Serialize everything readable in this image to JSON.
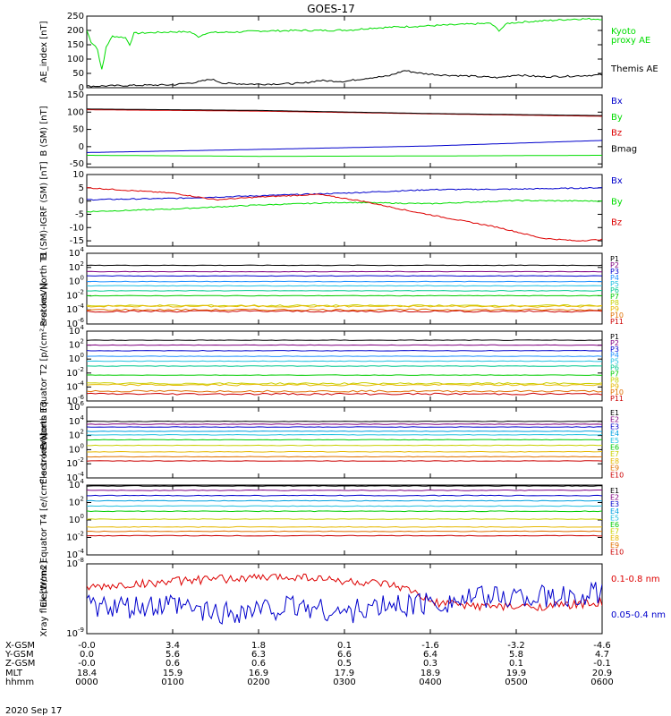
{
  "title": "GOES-17",
  "date_label": "2020 Sep 17",
  "colors": {
    "P1": "#000000",
    "P2": "#800080",
    "P3": "#0000cc",
    "P4": "#1e90ff",
    "P5": "#20c0e0",
    "P6": "#00c890",
    "P7": "#00cc00",
    "P8": "#c8d000",
    "P9": "#e6b800",
    "P10": "#e07000",
    "P11": "#cc0000",
    "E1": "#000000",
    "E2": "#800080",
    "E3": "#0000cc",
    "E4": "#00a0e0",
    "E5": "#20c0e0",
    "E6": "#00cc00",
    "E7": "#c8d000",
    "E8": "#e6b800",
    "E9": "#e07000",
    "E10": "#cc0000",
    "green": "#00dd00",
    "red": "#dd0000",
    "blue": "#0000cc",
    "black": "#000000"
  },
  "footer": {
    "row_labels": [
      "X-GSM",
      "Y-GSM",
      "Z-GSM",
      "MLT",
      "hhmm"
    ],
    "columns": [
      [
        "-0.0",
        "0.0",
        "-0.0",
        "18.4",
        "0000"
      ],
      [
        "3.4",
        "5.6",
        "0.6",
        "15.9",
        "0100"
      ],
      [
        "1.8",
        "6.3",
        "0.6",
        "16.9",
        "0200"
      ],
      [
        "0.1",
        "6.6",
        "0.5",
        "17.9",
        "0300"
      ],
      [
        "-1.6",
        "6.4",
        "0.3",
        "18.9",
        "0400"
      ],
      [
        "-3.2",
        "5.8",
        "0.1",
        "19.9",
        "0500"
      ],
      [
        "-4.6",
        "4.7",
        "-0.1",
        "20.9",
        "0600"
      ]
    ]
  },
  "chart_data": [
    {
      "type": "line",
      "id": "ae",
      "ylabel": "AE_index [nT]",
      "ylim": [
        0,
        250
      ],
      "yticks": [
        "0",
        "50",
        "100",
        "150",
        "200",
        "250"
      ],
      "x_range_hours": [
        0,
        6
      ],
      "series": [
        {
          "name": "Kyoto proxy AE",
          "color_key": "green",
          "points": [
            [
              0,
              200
            ],
            [
              0.05,
              160
            ],
            [
              0.12,
              140
            ],
            [
              0.18,
              55
            ],
            [
              0.22,
              140
            ],
            [
              0.3,
              180
            ],
            [
              0.45,
              175
            ],
            [
              0.5,
              150
            ],
            [
              0.55,
              190
            ],
            [
              1.0,
              195
            ],
            [
              1.2,
              195
            ],
            [
              1.3,
              178
            ],
            [
              1.4,
              192
            ],
            [
              1.8,
              195
            ],
            [
              2.0,
              198
            ],
            [
              2.5,
              200
            ],
            [
              2.8,
              200
            ],
            [
              3.1,
              202
            ],
            [
              3.3,
              208
            ],
            [
              3.6,
              212
            ],
            [
              3.9,
              215
            ],
            [
              4.3,
              220
            ],
            [
              4.7,
              225
            ],
            [
              4.8,
              200
            ],
            [
              4.9,
              225
            ],
            [
              5.1,
              230
            ],
            [
              5.4,
              235
            ],
            [
              5.7,
              240
            ],
            [
              6.0,
              240
            ]
          ]
        },
        {
          "name": "Themis AE",
          "color_key": "black",
          "points": [
            [
              0,
              5
            ],
            [
              0.5,
              8
            ],
            [
              1.0,
              10
            ],
            [
              1.3,
              20
            ],
            [
              1.45,
              30
            ],
            [
              1.6,
              15
            ],
            [
              2.0,
              12
            ],
            [
              2.5,
              15
            ],
            [
              2.7,
              25
            ],
            [
              3.0,
              22
            ],
            [
              3.3,
              35
            ],
            [
              3.5,
              40
            ],
            [
              3.7,
              60
            ],
            [
              3.9,
              50
            ],
            [
              4.1,
              45
            ],
            [
              4.5,
              40
            ],
            [
              4.8,
              35
            ],
            [
              5.0,
              45
            ],
            [
              5.3,
              38
            ],
            [
              5.6,
              40
            ],
            [
              6.0,
              45
            ]
          ]
        }
      ]
    },
    {
      "type": "line",
      "id": "b_sm",
      "ylabel": "B (SM) [nT]",
      "ylim": [
        -60,
        150
      ],
      "yticks": [
        "-50",
        "0",
        "50",
        "100",
        "150"
      ],
      "series": [
        {
          "name": "Bx",
          "color_key": "blue",
          "points": [
            [
              0,
              -17
            ],
            [
              2,
              -8
            ],
            [
              4,
              2
            ],
            [
              6,
              18
            ]
          ]
        },
        {
          "name": "By",
          "color_key": "green",
          "points": [
            [
              0,
              -25
            ],
            [
              2,
              -28
            ],
            [
              4,
              -27
            ],
            [
              6,
              -25
            ]
          ]
        },
        {
          "name": "Bz",
          "color_key": "red",
          "points": [
            [
              0,
              107
            ],
            [
              2,
              103
            ],
            [
              4,
              95
            ],
            [
              6,
              88
            ]
          ]
        },
        {
          "name": "Bmag",
          "color_key": "black",
          "points": [
            [
              0,
              109
            ],
            [
              2,
              105
            ],
            [
              4,
              96
            ],
            [
              6,
              90
            ]
          ]
        }
      ]
    },
    {
      "type": "line",
      "id": "b_igrf",
      "ylabel": "B (SM)-IGRF (SM) [nT]",
      "ylim": [
        -17,
        10
      ],
      "yticks": [
        "-15",
        "-10",
        "-5",
        "0",
        "5",
        "10"
      ],
      "series": [
        {
          "name": "Bx",
          "color_key": "blue",
          "points": [
            [
              0,
              0.5
            ],
            [
              1,
              1
            ],
            [
              2,
              2
            ],
            [
              3,
              3
            ],
            [
              4,
              4.3
            ],
            [
              5,
              4.5
            ],
            [
              6,
              5
            ]
          ]
        },
        {
          "name": "By",
          "color_key": "green",
          "points": [
            [
              0,
              -4
            ],
            [
              1,
              -3
            ],
            [
              2,
              -1.5
            ],
            [
              3,
              -0.5
            ],
            [
              4,
              -1
            ],
            [
              5,
              0.2
            ],
            [
              6,
              0
            ]
          ]
        },
        {
          "name": "Bz",
          "color_key": "red",
          "points": [
            [
              0,
              5
            ],
            [
              1,
              3
            ],
            [
              1.5,
              0.5
            ],
            [
              2,
              1.5
            ],
            [
              2.7,
              2.5
            ],
            [
              3.2,
              0
            ],
            [
              3.8,
              -4
            ],
            [
              4.3,
              -7
            ],
            [
              4.8,
              -10
            ],
            [
              5.3,
              -14
            ],
            [
              5.7,
              -15
            ],
            [
              6,
              -14.5
            ]
          ]
        }
      ]
    },
    {
      "type": "line",
      "id": "protons_t1",
      "ylabel": "Protons North T1",
      "ylog": true,
      "ylim_exp": [
        -6,
        4
      ],
      "yticks": [
        "10^-6",
        "10^-4",
        "10^-2",
        "10^0",
        "10^2",
        "10^4"
      ],
      "series": [
        {
          "name": "P1",
          "color_key": "P1",
          "log_level": 2.3
        },
        {
          "name": "P2",
          "color_key": "P2",
          "log_level": 1.4
        },
        {
          "name": "P3",
          "color_key": "P3",
          "log_level": 0.8
        },
        {
          "name": "P4",
          "color_key": "P4",
          "log_level": 0.0
        },
        {
          "name": "P5",
          "color_key": "P5",
          "log_level": -0.6
        },
        {
          "name": "P6",
          "color_key": "P6",
          "log_level": -1.3
        },
        {
          "name": "P7",
          "color_key": "P7",
          "log_level": -2.0
        },
        {
          "name": "P8",
          "color_key": "P8",
          "log_level": -3.4
        },
        {
          "name": "P9",
          "color_key": "P9",
          "log_level": -3.5
        },
        {
          "name": "P10",
          "color_key": "P10",
          "log_level": -4.0
        },
        {
          "name": "P11",
          "color_key": "P11",
          "log_level": -4.2
        }
      ]
    },
    {
      "type": "line",
      "id": "protons_t2",
      "ylabel": "Protons Equator T2 [p/(cm²-s-sr-keV)]",
      "ylog": true,
      "ylim_exp": [
        -6,
        4
      ],
      "yticks": [
        "10^-6",
        "10^-4",
        "10^-2",
        "10^0",
        "10^2",
        "10^4"
      ],
      "series": [
        {
          "name": "P1",
          "color_key": "P1",
          "log_level": 2.7
        },
        {
          "name": "P2",
          "color_key": "P2",
          "log_level": 2.0
        },
        {
          "name": "P3",
          "color_key": "P3",
          "log_level": 1.2
        },
        {
          "name": "P4",
          "color_key": "P4",
          "log_level": 0.4
        },
        {
          "name": "P5",
          "color_key": "P5",
          "log_level": -0.3
        },
        {
          "name": "P6",
          "color_key": "P6",
          "log_level": -1.0
        },
        {
          "name": "P7",
          "color_key": "P7",
          "log_level": -2.3
        },
        {
          "name": "P8",
          "color_key": "P8",
          "log_level": -3.5
        },
        {
          "name": "P9",
          "color_key": "P9",
          "log_level": -3.7
        },
        {
          "name": "P10",
          "color_key": "P10",
          "log_level": -4.6
        },
        {
          "name": "P11",
          "color_key": "P11",
          "log_level": -5.0
        }
      ]
    },
    {
      "type": "line",
      "id": "electrons_t3",
      "ylabel": "Electrons North T3",
      "ylog": true,
      "ylim_exp": [
        -4,
        6
      ],
      "yticks": [
        "10^-4",
        "10^-2",
        "10^0",
        "10^2",
        "10^4",
        "10^6"
      ],
      "series": [
        {
          "name": "E1",
          "color_key": "E1",
          "log_level": 4.0
        },
        {
          "name": "E2",
          "color_key": "E2",
          "log_level": 3.6
        },
        {
          "name": "E3",
          "color_key": "E3",
          "log_level": 3.2
        },
        {
          "name": "E4",
          "color_key": "E4",
          "log_level": 2.6
        },
        {
          "name": "E5",
          "color_key": "E5",
          "log_level": 2.1
        },
        {
          "name": "E6",
          "color_key": "E6",
          "log_level": 1.4
        },
        {
          "name": "E7",
          "color_key": "E7",
          "log_level": 0.6
        },
        {
          "name": "E8",
          "color_key": "E8",
          "log_level": -0.3
        },
        {
          "name": "E9",
          "color_key": "E9",
          "log_level": -1.0
        },
        {
          "name": "E10",
          "color_key": "E10",
          "log_level": -1.6
        }
      ]
    },
    {
      "type": "line",
      "id": "electrons_t4",
      "ylabel": "Electrons Equator T4 [e/(cm²-s-sr-keV)]",
      "ylog": true,
      "ylim_exp": [
        -4,
        4
      ],
      "yticks": [
        "10^-4",
        "10^-2",
        "10^0",
        "10^2",
        "10^4"
      ],
      "series": [
        {
          "name": "E1",
          "color_key": "E1",
          "log_level": 3.9
        },
        {
          "name": "E2",
          "color_key": "E2",
          "log_level": 3.4
        },
        {
          "name": "E3",
          "color_key": "E3",
          "log_level": 2.8
        },
        {
          "name": "E4",
          "color_key": "E4",
          "log_level": 2.2
        },
        {
          "name": "E5",
          "color_key": "E5",
          "log_level": 1.6
        },
        {
          "name": "E6",
          "color_key": "E6",
          "log_level": 1.0
        },
        {
          "name": "E7",
          "color_key": "E7",
          "log_level": 0.1
        },
        {
          "name": "E8",
          "color_key": "E8",
          "log_level": -0.8
        },
        {
          "name": "E9",
          "color_key": "E9",
          "log_level": -1.3
        },
        {
          "name": "E10",
          "color_key": "E10",
          "log_level": -1.8
        }
      ]
    },
    {
      "type": "line",
      "id": "xray",
      "ylabel": "Xray flux [W/m2]",
      "ylog": true,
      "ylim_exp": [
        -9,
        -8
      ],
      "yticks": [
        "10^-9",
        "10^-8"
      ],
      "series": [
        {
          "name": "0.1-0.8 nm",
          "color_key": "red",
          "points": [
            [
              0,
              -8.35
            ],
            [
              0.5,
              -8.3
            ],
            [
              1,
              -8.25
            ],
            [
              1.5,
              -8.22
            ],
            [
              2,
              -8.2
            ],
            [
              2.5,
              -8.18
            ],
            [
              3,
              -8.25
            ],
            [
              3.5,
              -8.3
            ],
            [
              3.8,
              -8.4
            ],
            [
              4.0,
              -8.55
            ],
            [
              4.5,
              -8.6
            ],
            [
              5,
              -8.62
            ],
            [
              5.5,
              -8.6
            ],
            [
              6,
              -8.55
            ]
          ]
        },
        {
          "name": "0.05-0.4 nm",
          "color_key": "blue",
          "points": [
            [
              0,
              -8.6
            ],
            [
              0.5,
              -8.65
            ],
            [
              1,
              -8.6
            ],
            [
              1.5,
              -8.7
            ],
            [
              2,
              -8.65
            ],
            [
              2.5,
              -8.6
            ],
            [
              3,
              -8.7
            ],
            [
              3.5,
              -8.6
            ],
            [
              4,
              -8.55
            ],
            [
              4.5,
              -8.5
            ],
            [
              5,
              -8.45
            ],
            [
              5.5,
              -8.5
            ],
            [
              6,
              -8.4
            ]
          ]
        }
      ]
    }
  ],
  "legends": {
    "ae": [
      {
        "text": "Kyoto",
        "color_key": "green"
      },
      {
        "text": "proxy AE",
        "color_key": "green"
      },
      {
        "text": "Themis AE",
        "color_key": "black"
      }
    ],
    "b_sm": [
      {
        "text": "Bx",
        "color_key": "blue"
      },
      {
        "text": "By",
        "color_key": "green"
      },
      {
        "text": "Bz",
        "color_key": "red"
      },
      {
        "text": "Bmag",
        "color_key": "black"
      }
    ],
    "b_igrf": [
      {
        "text": "Bx",
        "color_key": "blue"
      },
      {
        "text": "By",
        "color_key": "green"
      },
      {
        "text": "Bz",
        "color_key": "red"
      }
    ],
    "xray": [
      {
        "text": "0.1-0.8 nm",
        "color_key": "red"
      },
      {
        "text": "0.05-0.4 nm",
        "color_key": "blue"
      }
    ]
  }
}
